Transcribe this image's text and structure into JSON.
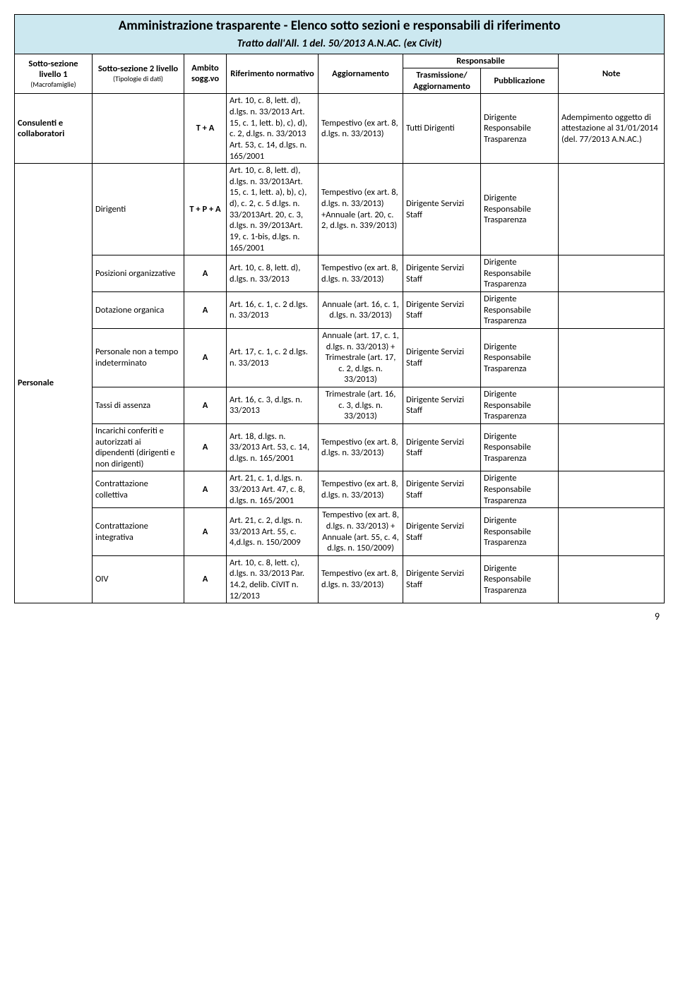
{
  "colors": {
    "header_bg": "#cce8f0",
    "border": "#000000",
    "page_bg": "#ffffff",
    "text": "#000000"
  },
  "title": "Amministrazione trasparente - Elenco sotto sezioni e responsabili di riferimento",
  "subtitle": "Tratto dall'All. 1 del. 50/2013 A.N.AC. (ex Civit)",
  "page_number": "9",
  "headers": {
    "macro": "Sotto-sezione livello 1",
    "macro_sub": "(Macrofamiglie)",
    "tipo": "Sotto-sezione 2 livello",
    "tipo_sub": "(Tipologie di dati)",
    "ambito": "Ambito sogg.vo",
    "rif": "Riferimento normativo",
    "agg": "Aggiornamento",
    "resp": "Responsabile",
    "trasm": "Trasmissione/ Aggiornamento",
    "pub": "Pubblicazione",
    "note": "Note"
  },
  "rows": [
    {
      "macro": "Consulenti e collaboratori",
      "tipo": "",
      "ambito": "T + A",
      "rif": "Art. 10, c. 8, lett. d), d.lgs. n. 33/2013\nArt. 15, c. 1, lett. b), c), d), c. 2, d.lgs. n. 33/2013\nArt. 53, c. 14, d.lgs. n. 165/2001",
      "agg": "Tempestivo (ex art. 8, d.lgs. n. 33/2013)",
      "trasm": "Tutti Dirigenti",
      "pub": "Dirigente Responsabile Trasparenza",
      "note": "Adempimento oggetto di attestazione al 31/01/2014 (del. 77/2013 A.N.AC.)"
    },
    {
      "tipo": "Dirigenti",
      "ambito": "T + P + A",
      "rif": "Art. 10, c. 8, lett. d), d.lgs. n. 33/2013Art. 15, c. 1, lett. a), b), c), d), c. 2, c. 5 d.lgs. n. 33/2013Art. 20, c. 3, d.lgs. n. 39/2013Art. 19, c. 1-bis, d.lgs. n. 165/2001",
      "agg": "Tempestivo (ex art. 8, d.lgs. n. 33/2013) +Annuale (art. 20, c. 2, d.lgs. n. 339/2013)",
      "trasm": "Dirigente Servizi Staff",
      "pub": "Dirigente Responsabile Trasparenza",
      "note": ""
    },
    {
      "tipo": "Posizioni organizzative",
      "ambito": "A",
      "rif": "Art. 10, c. 8, lett. d), d.lgs. n. 33/2013",
      "agg": "Tempestivo (ex art. 8, d.lgs. n. 33/2013)",
      "trasm": "Dirigente Servizi Staff",
      "pub": "Dirigente Responsabile Trasparenza",
      "note": ""
    },
    {
      "tipo": "Dotazione organica",
      "ambito": "A",
      "rif": "Art. 16, c. 1, c. 2 d.lgs. n. 33/2013",
      "agg": "Annuale (art. 16, c. 1, d.lgs. n. 33/2013)",
      "trasm": "Dirigente Servizi Staff",
      "pub": "Dirigente Responsabile Trasparenza",
      "note": ""
    },
    {
      "tipo": "Personale non a tempo indeterminato",
      "ambito": "A",
      "rif": "Art. 17, c. 1,  c. 2 d.lgs. n. 33/2013",
      "agg": "Annuale (art. 17, c. 1, d.lgs. n. 33/2013) + Trimestrale (art. 17, c. 2, d.lgs. n. 33/2013)",
      "trasm": "Dirigente Servizi Staff",
      "pub": "Dirigente Responsabile Trasparenza",
      "note": ""
    },
    {
      "macro": "Personale",
      "tipo": "Tassi di assenza",
      "ambito": "A",
      "rif": "Art. 16, c. 3, d.lgs. n. 33/2013",
      "agg": "Trimestrale (art. 16, c. 3, d.lgs. n. 33/2013)",
      "trasm": "Dirigente Servizi Staff",
      "pub": "Dirigente Responsabile Trasparenza",
      "note": ""
    },
    {
      "tipo": "Incarichi conferiti e autorizzati ai dipendenti (dirigenti e non dirigenti)",
      "ambito": "A",
      "rif": "Art. 18, d.lgs. n. 33/2013\nArt. 53, c. 14, d.lgs. n. 165/2001",
      "agg": "Tempestivo (ex art. 8, d.lgs. n. 33/2013)",
      "trasm": "Dirigente  Servizi Staff",
      "pub": "Dirigente Responsabile Trasparenza",
      "note": ""
    },
    {
      "tipo": "Contrattazione collettiva",
      "ambito": "A",
      "rif": "Art. 21, c. 1, d.lgs. n. 33/2013\nArt. 47, c. 8, d.lgs. n. 165/2001",
      "agg": "Tempestivo (ex art. 8, d.lgs. n. 33/2013)",
      "trasm": "Dirigente Servizi Staff",
      "pub": "Dirigente Responsabile Trasparenza",
      "note": ""
    },
    {
      "tipo": "Contrattazione integrativa",
      "ambito": "A",
      "rif": "Art. 21, c. 2, d.lgs. n. 33/2013\nArt. 55, c. 4,d.lgs. n. 150/2009",
      "agg": "Tempestivo (ex art. 8, d.lgs. n. 33/2013) + Annuale (art. 55, c. 4, d.lgs. n. 150/2009)",
      "trasm": "Dirigente Servizi Staff",
      "pub": "Dirigente Responsabile Trasparenza",
      "note": ""
    },
    {
      "tipo": "OIV",
      "ambito": "A",
      "rif": "Art. 10, c. 8, lett. c), d.lgs. n. 33/2013\nPar. 14.2, delib. CiVIT n. 12/2013",
      "agg": "Tempestivo (ex art. 8, d.lgs. n. 33/2013)",
      "trasm": "Dirigente Servizi Staff",
      "pub": "Dirigente Responsabile Trasparenza",
      "note": ""
    }
  ]
}
